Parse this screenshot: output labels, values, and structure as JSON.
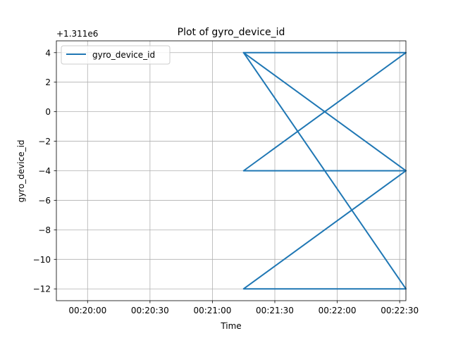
{
  "chart_data": {
    "type": "line",
    "title": "Plot of gyro_device_id",
    "xlabel": "Time",
    "ylabel": "gyro_device_id",
    "offset_label": "+1.311e6",
    "y_offset": 1311000,
    "grid": true,
    "legend_position": "top-left",
    "x_tick_labels": [
      "00:20:00",
      "00:20:30",
      "00:21:00",
      "00:21:30",
      "00:22:00",
      "00:22:30"
    ],
    "y_tick_labels": [
      "4",
      "2",
      "0",
      "−2",
      "−4",
      "−6",
      "−8",
      "−10",
      "−12"
    ],
    "xlim": [
      "00:19:45",
      "00:22:33"
    ],
    "ylim": [
      -12.8,
      4.8
    ],
    "series": [
      {
        "name": "gyro_device_id",
        "color": "#1f77b4",
        "x": [
          "00:21:15",
          "00:22:33",
          "00:21:15",
          "00:22:33",
          "00:21:15",
          "00:22:33",
          "00:21:15",
          "00:22:33"
        ],
        "y": [
          4,
          4,
          -4,
          -4,
          -12,
          -12,
          4,
          -4
        ]
      }
    ]
  }
}
